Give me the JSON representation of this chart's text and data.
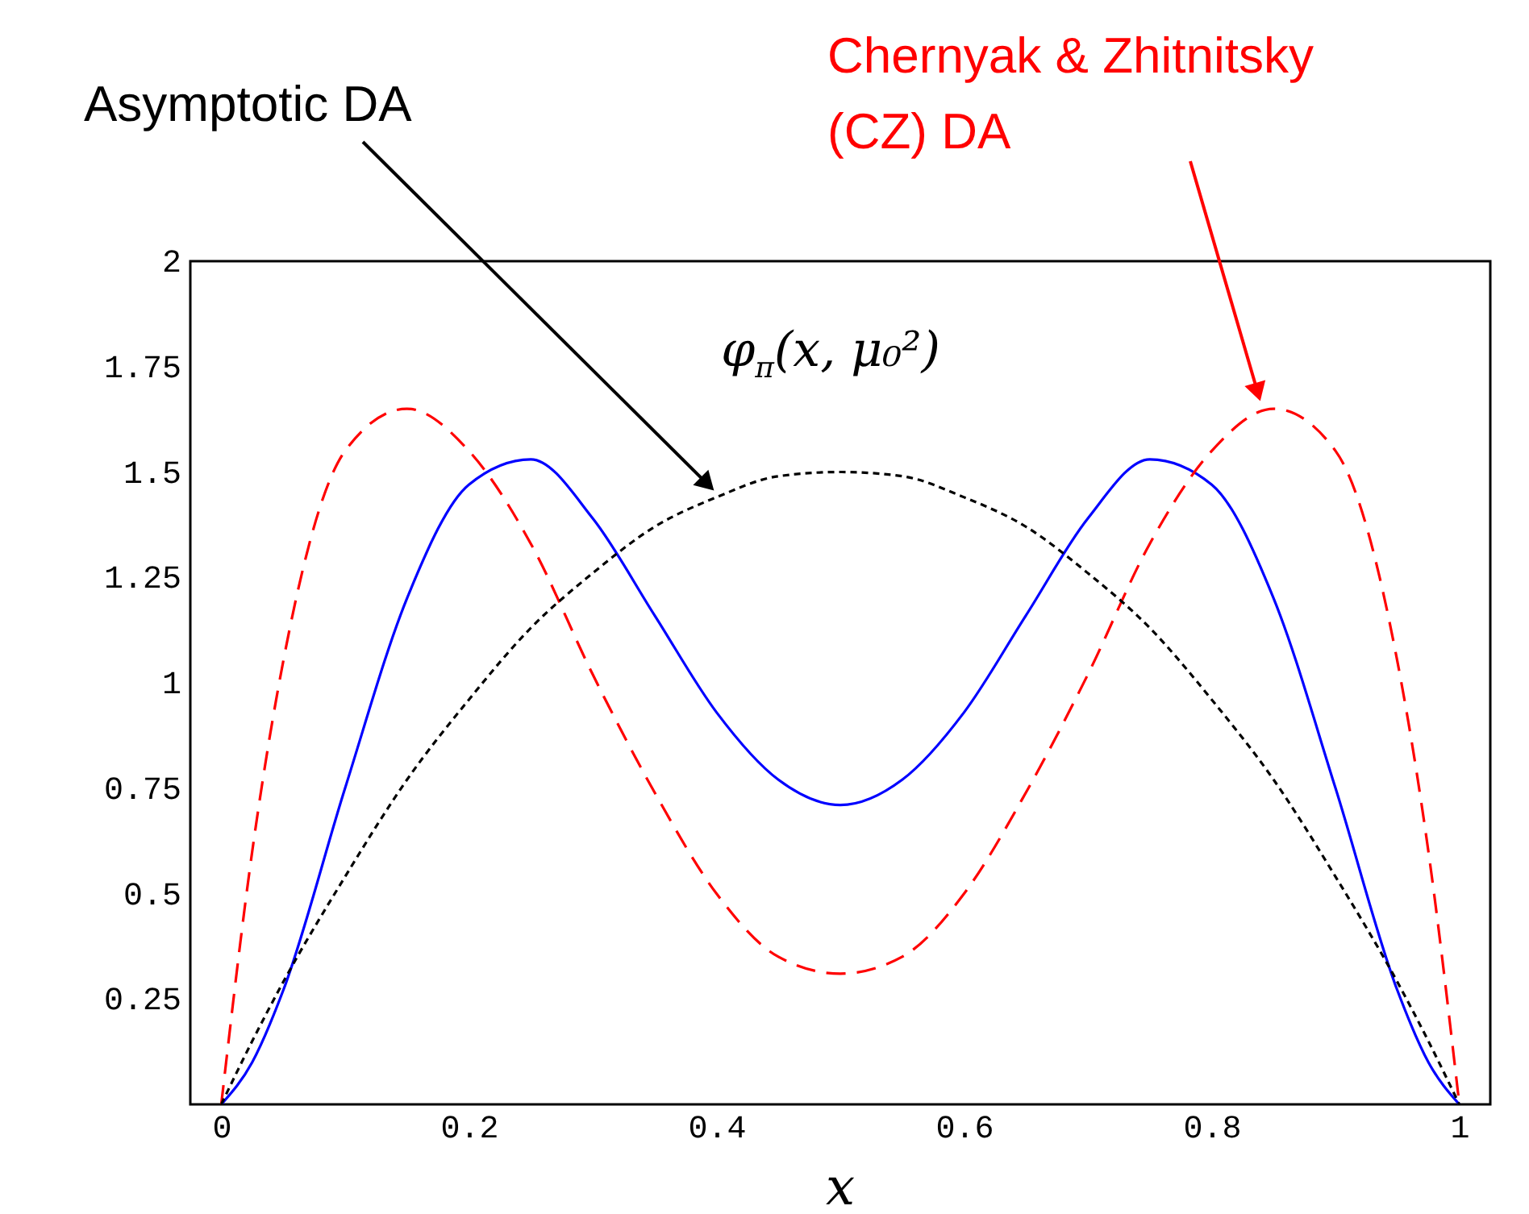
{
  "chart_data": {
    "type": "line",
    "xlabel": "x",
    "x": [
      0,
      0.025,
      0.05,
      0.1,
      0.15,
      0.2,
      0.25,
      0.3,
      0.35,
      0.4,
      0.45,
      0.5,
      0.55,
      0.6,
      0.65,
      0.7,
      0.75,
      0.8,
      0.85,
      0.9,
      0.95,
      0.975,
      1
    ],
    "series": [
      {
        "color": "#0000ff",
        "line_style": "solid",
        "values": [
          0,
          0.1,
          0.27,
          0.75,
          1.2,
          1.47,
          1.53,
          1.39,
          1.16,
          0.93,
          0.77,
          0.71,
          0.77,
          0.93,
          1.16,
          1.39,
          1.53,
          1.47,
          1.2,
          0.75,
          0.27,
          0.1,
          0
        ]
      },
      {
        "color": "#ff0000",
        "line_style": "dashed",
        "values": [
          0,
          0.6,
          1.05,
          1.55,
          1.65,
          1.55,
          1.33,
          1.02,
          0.74,
          0.5,
          0.35,
          0.31,
          0.35,
          0.5,
          0.74,
          1.02,
          1.33,
          1.55,
          1.65,
          1.55,
          1.05,
          0.6,
          0
        ]
      },
      {
        "color": "#000000",
        "line_style": "dotted",
        "values": [
          0,
          0.15,
          0.29,
          0.54,
          0.77,
          0.96,
          1.13,
          1.26,
          1.37,
          1.44,
          1.49,
          1.5,
          1.49,
          1.44,
          1.37,
          1.26,
          1.13,
          0.96,
          0.77,
          0.54,
          0.29,
          0.15,
          0
        ]
      }
    ],
    "xlim": [
      -0.025,
      1.025
    ],
    "ylim": [
      0,
      2
    ],
    "xticks": [
      0,
      0.2,
      0.4,
      0.6,
      0.8,
      1
    ],
    "yticks": [
      0.25,
      0.5,
      0.75,
      1,
      1.25,
      1.5,
      1.75,
      2
    ],
    "grid": false,
    "marker": "none",
    "annotations": [
      {
        "text": "Asymptotic DA",
        "x": 0.4,
        "y": 1.45
      },
      {
        "text": "Chernyak & Zhitnitsky\n(CZ) DA",
        "x": 0.84,
        "y": 1.66
      },
      "φ$_{π}$(x, μ₀²)"
    ]
  }
}
